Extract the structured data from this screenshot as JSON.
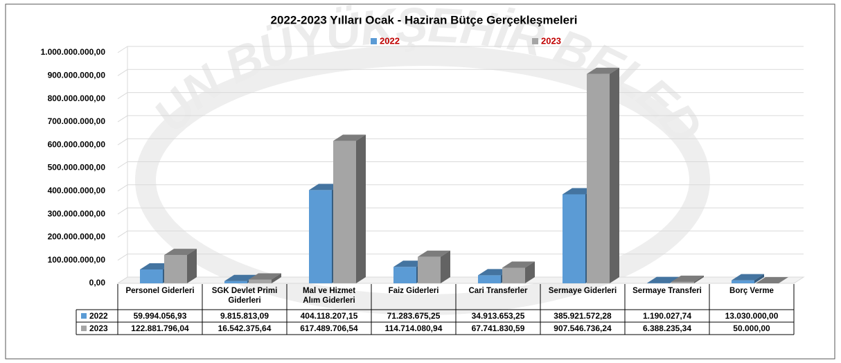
{
  "chart_data": {
    "type": "bar",
    "title": "2022-2023 Yılları Ocak - Haziran Bütçe Gerçekleşmeleri",
    "watermark": "SAMSUN BÜYÜKŞEHİR BELEDİYESİ",
    "categories": [
      "Personel Giderleri",
      "SGK Devlet Primi Giderleri",
      "Mal ve Hizmet Alım Giderleri",
      "Faiz Giderleri",
      "Cari Transferler",
      "Sermaye Giderleri",
      "Sermaye Transferi",
      "Borç Verme"
    ],
    "series": [
      {
        "name": "2022",
        "color": "#5b9bd5",
        "values": [
          59994056.93,
          9815813.09,
          404118207.15,
          71283675.25,
          34913653.25,
          385921572.28,
          1190027.74,
          13030000.0
        ],
        "value_labels": [
          "59.994.056,93",
          "9.815.813,09",
          "404.118.207,15",
          "71.283.675,25",
          "34.913.653,25",
          "385.921.572,28",
          "1.190.027,74",
          "13.030.000,00"
        ]
      },
      {
        "name": "2023",
        "color": "#a5a5a5",
        "values": [
          122881796.04,
          16542375.64,
          617489706.54,
          114714080.94,
          67741830.59,
          907546736.24,
          6388235.34,
          50000.0
        ],
        "value_labels": [
          "122.881.796,04",
          "16.542.375,64",
          "617.489.706,54",
          "114.714.080,94",
          "67.741.830,59",
          "907.546.736,24",
          "6.388.235,34",
          "50.000,00"
        ]
      }
    ],
    "ylim": [
      0,
      1000000000
    ],
    "yticks": [
      {
        "value": 0,
        "label": "0,00"
      },
      {
        "value": 100000000,
        "label": "100.000.000,00"
      },
      {
        "value": 200000000,
        "label": "200.000.000,00"
      },
      {
        "value": 300000000,
        "label": "300.000.000,00"
      },
      {
        "value": 400000000,
        "label": "400.000.000,00"
      },
      {
        "value": 500000000,
        "label": "500.000.000,00"
      },
      {
        "value": 600000000,
        "label": "600.000.000,00"
      },
      {
        "value": 700000000,
        "label": "700.000.000,00"
      },
      {
        "value": 800000000,
        "label": "800.000.000,00"
      },
      {
        "value": 900000000,
        "label": "900.000.000,00"
      },
      {
        "value": 1000000000,
        "label": "1.000.000.000,00"
      }
    ],
    "grid": true,
    "legend": "top"
  }
}
